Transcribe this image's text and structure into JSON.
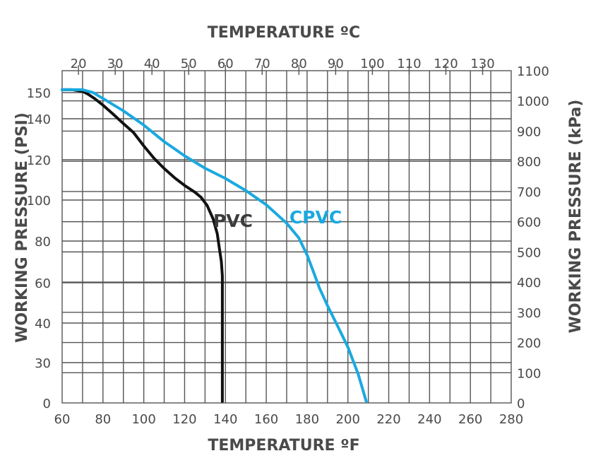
{
  "chart_data": {
    "type": "line",
    "title": "",
    "top_axis": {
      "label": "TEMPERATURE ºC",
      "ticks": [
        20,
        30,
        40,
        50,
        60,
        70,
        80,
        90,
        100,
        110,
        120,
        130
      ],
      "unit": "°C"
    },
    "bottom_axis": {
      "label": "TEMPERATURE ºF",
      "ticks": [
        60,
        80,
        100,
        120,
        140,
        160,
        180,
        200,
        220,
        240,
        260,
        280
      ],
      "range": [
        60,
        280
      ],
      "unit": "°F"
    },
    "left_axis": {
      "label": "WORKING PRESSURE (PSI)",
      "ticks": [
        "150",
        "140",
        "120",
        "100",
        "80",
        "60",
        "40",
        "30",
        "0"
      ]
    },
    "right_axis": {
      "label": "WORKING PRESSURE (kPa)",
      "ticks": [
        "1100",
        "1000",
        "900",
        "800",
        "700",
        "600",
        "500",
        "400",
        "300",
        "200",
        "100",
        "0"
      ],
      "range": [
        0,
        1100
      ],
      "unit": "kPa"
    },
    "grid": true,
    "series": [
      {
        "name": "PVC",
        "color": "#111111",
        "x_unit": "°F",
        "y_unit": "kPa",
        "points": [
          [
            60,
            1037
          ],
          [
            65,
            1037
          ],
          [
            70,
            1032
          ],
          [
            73,
            1021
          ],
          [
            76,
            1007
          ],
          [
            80,
            986
          ],
          [
            85,
            956
          ],
          [
            90,
            925
          ],
          [
            95,
            895
          ],
          [
            100,
            851
          ],
          [
            105,
            810
          ],
          [
            110,
            776
          ],
          [
            115,
            746
          ],
          [
            120,
            720
          ],
          [
            125,
            698
          ],
          [
            128,
            681
          ],
          [
            131,
            654
          ],
          [
            134,
            609
          ],
          [
            136,
            560
          ],
          [
            137,
            513
          ],
          [
            138,
            468
          ],
          [
            138.5,
            420
          ],
          [
            138.5,
            300
          ],
          [
            138.5,
            150
          ],
          [
            138.5,
            5
          ]
        ]
      },
      {
        "name": "CPVC",
        "color": "#1aa9e0",
        "x_unit": "°F",
        "y_unit": "kPa",
        "points": [
          [
            60,
            1037
          ],
          [
            70,
            1037
          ],
          [
            75,
            1028
          ],
          [
            80,
            1008
          ],
          [
            90,
            967
          ],
          [
            100,
            920
          ],
          [
            110,
            865
          ],
          [
            120,
            818
          ],
          [
            130,
            777
          ],
          [
            140,
            743
          ],
          [
            150,
            703
          ],
          [
            160,
            656
          ],
          [
            170,
            595
          ],
          [
            176,
            546
          ],
          [
            180,
            490
          ],
          [
            183,
            436
          ],
          [
            186,
            381
          ],
          [
            190,
            322
          ],
          [
            195,
            254
          ],
          [
            200,
            185
          ],
          [
            205,
            96
          ],
          [
            209,
            5
          ]
        ]
      }
    ]
  }
}
